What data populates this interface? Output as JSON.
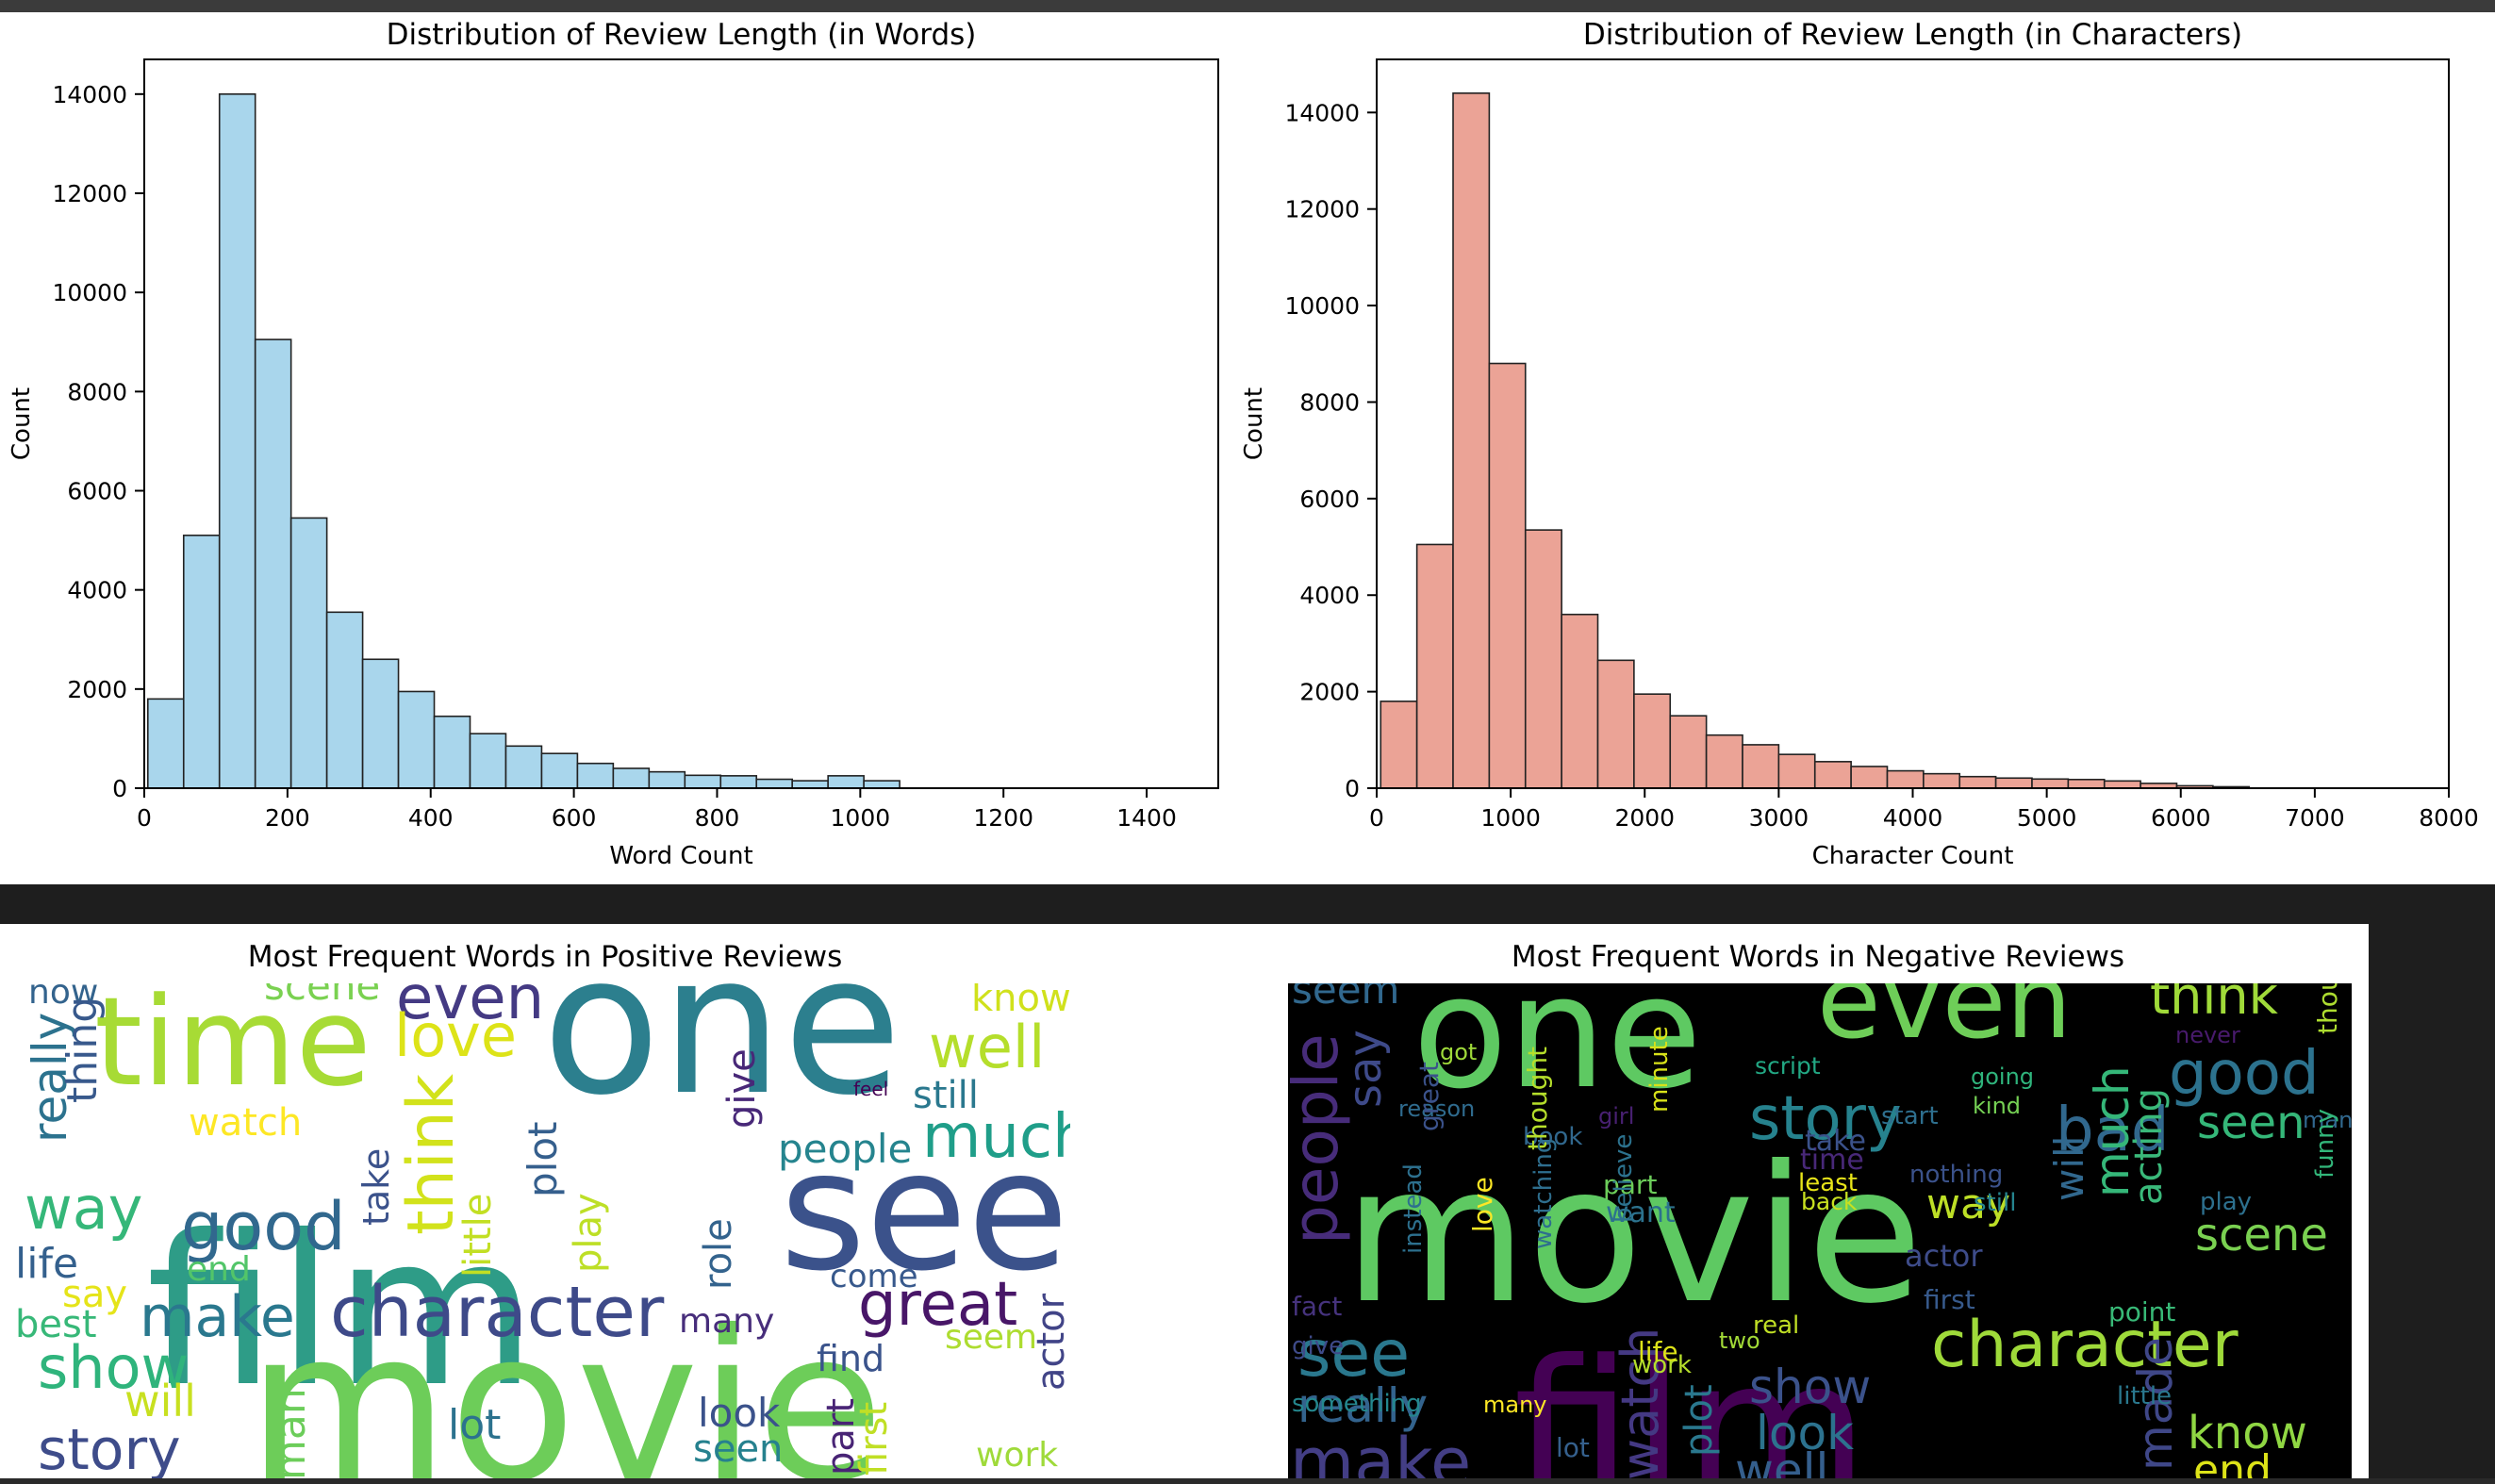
{
  "chart_data": [
    {
      "type": "bar",
      "title": "Distribution of Review Length (in Words)",
      "xlabel": "Word Count",
      "ylabel": "Count",
      "xlim": [
        0,
        1500
      ],
      "ylim": [
        0,
        14700
      ],
      "xticks": [
        0,
        200,
        400,
        600,
        800,
        1000,
        1200,
        1400
      ],
      "yticks": [
        0,
        2000,
        4000,
        6000,
        8000,
        10000,
        12000,
        14000
      ],
      "bin_width": 50,
      "bin_start": 5,
      "values": [
        1800,
        5100,
        14000,
        9050,
        5450,
        3550,
        2600,
        1950,
        1450,
        1100,
        850,
        700,
        500,
        400,
        330,
        260,
        250,
        180,
        150,
        250,
        150
      ],
      "color": "#a9d6ec",
      "edge_color": "#222222"
    },
    {
      "type": "bar",
      "title": "Distribution of Review Length (in Characters)",
      "xlabel": "Character Count",
      "ylabel": "Count",
      "xlim": [
        0,
        8000
      ],
      "ylim": [
        0,
        15100
      ],
      "xticks": [
        0,
        1000,
        2000,
        3000,
        4000,
        5000,
        6000,
        7000,
        8000
      ],
      "yticks": [
        0,
        2000,
        4000,
        6000,
        8000,
        10000,
        12000,
        14000
      ],
      "bin_width": 270,
      "bin_start": 30,
      "values": [
        1800,
        5050,
        14400,
        8800,
        5350,
        3600,
        2650,
        1950,
        1500,
        1100,
        900,
        700,
        550,
        450,
        360,
        300,
        240,
        210,
        190,
        180,
        150,
        100,
        50,
        30
      ],
      "color": "#eba396",
      "edge_color": "#222222"
    }
  ],
  "wordclouds": {
    "positive": {
      "title": "Most Frequent Words in Positive Reviews",
      "background": "#ffffff",
      "words": [
        {
          "t": "film",
          "c": "#2e9c87"
        },
        {
          "t": "movie",
          "c": "#6dcd59"
        },
        {
          "t": "one",
          "c": "#2c7f8e"
        },
        {
          "t": "see",
          "c": "#3b528b"
        },
        {
          "t": "time",
          "c": "#a7db35"
        },
        {
          "t": "character",
          "c": "#3e4a89"
        },
        {
          "t": "great",
          "c": "#481668"
        },
        {
          "t": "even",
          "c": "#443a83"
        },
        {
          "t": "love",
          "c": "#dde318"
        },
        {
          "t": "well",
          "c": "#b5de2b"
        },
        {
          "t": "much",
          "c": "#1f9e89"
        },
        {
          "t": "make",
          "c": "#2a788e"
        },
        {
          "t": "good",
          "c": "#31688e"
        },
        {
          "t": "way",
          "c": "#35b779"
        },
        {
          "t": "show",
          "c": "#2fb47c"
        },
        {
          "t": "story",
          "c": "#3e4c8a"
        },
        {
          "t": "think",
          "c": "#d2e21b"
        },
        {
          "t": "people",
          "c": "#25848e"
        },
        {
          "t": "scene",
          "c": "#7ad151"
        },
        {
          "t": "now",
          "c": "#33638d"
        },
        {
          "t": "life",
          "c": "#34608d"
        },
        {
          "t": "really",
          "c": "#2c728e"
        },
        {
          "t": "thing",
          "c": "#38598c"
        },
        {
          "t": "watch",
          "c": "#fde725"
        },
        {
          "t": "know",
          "c": "#d0e11c"
        },
        {
          "t": "still",
          "c": "#2a788e"
        },
        {
          "t": "plot",
          "c": "#355f8d"
        },
        {
          "t": "little",
          "c": "#c2df23"
        },
        {
          "t": "take",
          "c": "#3b528b"
        },
        {
          "t": "play",
          "c": "#bddf26"
        },
        {
          "t": "role",
          "c": "#33638d"
        },
        {
          "t": "give",
          "c": "#482878"
        },
        {
          "t": "best",
          "c": "#37b878"
        },
        {
          "t": "say",
          "c": "#e5e419"
        },
        {
          "t": "end",
          "c": "#52c569"
        },
        {
          "t": "will",
          "c": "#c8e020"
        },
        {
          "t": "many",
          "c": "#472d7b"
        },
        {
          "t": "find",
          "c": "#3a538b"
        },
        {
          "t": "seem",
          "c": "#addc30"
        },
        {
          "t": "come",
          "c": "#38598c"
        },
        {
          "t": "actor",
          "c": "#414487"
        },
        {
          "t": "look",
          "c": "#3b528b"
        },
        {
          "t": "seen",
          "c": "#26818e"
        },
        {
          "t": "lot",
          "c": "#2c728e"
        },
        {
          "t": "work",
          "c": "#9fda3a"
        },
        {
          "t": "part",
          "c": "#482475"
        },
        {
          "t": "first",
          "c": "#c0df25"
        },
        {
          "t": "man",
          "c": "#6ccd5a"
        },
        {
          "t": "feel",
          "c": "#440154"
        }
      ]
    },
    "negative": {
      "title": "Most Frequent Words in Negative Reviews",
      "background": "#000000",
      "words": [
        {
          "t": "movie",
          "c": "#5ec962"
        },
        {
          "t": "film",
          "c": "#440154"
        },
        {
          "t": "one",
          "c": "#5ec962"
        },
        {
          "t": "even",
          "c": "#6ece58"
        },
        {
          "t": "character",
          "c": "#9fda3a"
        },
        {
          "t": "story",
          "c": "#26828e"
        },
        {
          "t": "good",
          "c": "#2c728e"
        },
        {
          "t": "bad",
          "c": "#31688e"
        },
        {
          "t": "think",
          "c": "#a0da39"
        },
        {
          "t": "seen",
          "c": "#35b779"
        },
        {
          "t": "scene",
          "c": "#7ad151"
        },
        {
          "t": "see",
          "c": "#2a788e"
        },
        {
          "t": "people",
          "c": "#472c7a"
        },
        {
          "t": "make",
          "c": "#433e85"
        },
        {
          "t": "really",
          "c": "#33638d"
        },
        {
          "t": "show",
          "c": "#3b528b"
        },
        {
          "t": "look",
          "c": "#2c728e"
        },
        {
          "t": "well",
          "c": "#355f8d"
        },
        {
          "t": "know",
          "c": "#90d743"
        },
        {
          "t": "end",
          "c": "#dde318"
        },
        {
          "t": "way",
          "c": "#bddf26"
        },
        {
          "t": "seem",
          "c": "#31688e"
        },
        {
          "t": "say",
          "c": "#3e4a89"
        },
        {
          "t": "plot",
          "c": "#2a788e"
        },
        {
          "t": "actor",
          "c": "#3e4c8a"
        },
        {
          "t": "much",
          "c": "#35b779"
        },
        {
          "t": "acting",
          "c": "#3ab97a"
        },
        {
          "t": "will",
          "c": "#31688e"
        },
        {
          "t": "watch",
          "c": "#443983"
        },
        {
          "t": "made",
          "c": "#3f4788"
        },
        {
          "t": "time",
          "c": "#482878"
        },
        {
          "t": "take",
          "c": "#3b528b"
        },
        {
          "t": "play",
          "c": "#2d708e"
        },
        {
          "t": "got",
          "c": "#9fda3a"
        },
        {
          "t": "script",
          "c": "#22a884"
        },
        {
          "t": "going",
          "c": "#2fb47c"
        },
        {
          "t": "kind",
          "c": "#75d054"
        },
        {
          "t": "reason",
          "c": "#2f6b8e"
        },
        {
          "t": "book",
          "c": "#31688e"
        },
        {
          "t": "least",
          "c": "#e7e419"
        },
        {
          "t": "back",
          "c": "#c8e020"
        },
        {
          "t": "part",
          "c": "#6ccd5a"
        },
        {
          "t": "want",
          "c": "#2c728e"
        },
        {
          "t": "nothing",
          "c": "#3b528b"
        },
        {
          "t": "still",
          "c": "#25848e"
        },
        {
          "t": "first",
          "c": "#375a8c"
        },
        {
          "t": "work",
          "c": "#b5de2b"
        },
        {
          "t": "real",
          "c": "#c0df25"
        },
        {
          "t": "life",
          "c": "#dde318"
        },
        {
          "t": "lot",
          "c": "#35608d"
        },
        {
          "t": "fact",
          "c": "#46337e"
        },
        {
          "t": "give",
          "c": "#3e4a89"
        },
        {
          "t": "something",
          "c": "#24878e"
        },
        {
          "t": "many",
          "c": "#fde725"
        },
        {
          "t": "point",
          "c": "#38b977"
        },
        {
          "t": "little",
          "c": "#2a788e"
        },
        {
          "t": "never",
          "c": "#481a6c"
        },
        {
          "t": "man",
          "c": "#31688e"
        },
        {
          "t": "great",
          "c": "#3b528b"
        },
        {
          "t": "minute",
          "c": "#d8e219"
        },
        {
          "t": "thought",
          "c": "#b5de2b"
        },
        {
          "t": "love",
          "c": "#fde725"
        },
        {
          "t": "watching",
          "c": "#2e6e8e"
        },
        {
          "t": "instead",
          "c": "#2d708e"
        },
        {
          "t": "believe",
          "c": "#2c728e"
        },
        {
          "t": "funny",
          "c": "#32b67a"
        },
        {
          "t": "though",
          "c": "#addc30"
        },
        {
          "t": "start",
          "c": "#2e6f8e"
        },
        {
          "t": "two",
          "c": "#a2da37"
        },
        {
          "t": "girl",
          "c": "#482071"
        }
      ]
    }
  }
}
